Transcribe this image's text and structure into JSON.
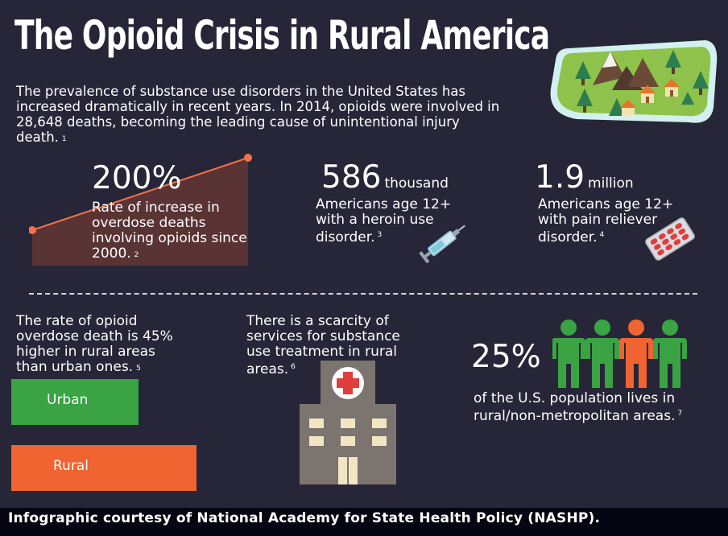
{
  "title": "The Opioid Crisis in Rural America",
  "intro": {
    "text": "The prevalence of substance use disorders in the United States has increased dramatically in recent years. In 2014, opioids were involved in 28,648 deaths, becoming the leading cause of unintentional injury death.",
    "ref": "1"
  },
  "stats": {
    "increase": {
      "value": "200%",
      "text": "Rate of increase in overdose deaths involving opioids since 2000.",
      "ref": "2"
    },
    "heroin": {
      "value": "586",
      "unit": "thousand",
      "text": "Americans age 12+ with a heroin use disorder.",
      "ref": "3"
    },
    "pain": {
      "value": "1.9",
      "unit": "million",
      "text": "Americans age 12+ with pain reliever disorder.",
      "ref": "4"
    }
  },
  "rural_rate": {
    "text": "The rate of opioid overdose death is 45% higher in rural areas than urban ones.",
    "ref": "5",
    "urban_label": "Urban",
    "rural_label": "Rural",
    "urban_color": "#3aa343",
    "rural_color": "#ef6431"
  },
  "scarcity": {
    "text": "There is a scarcity of services for substance use treatment in rural areas.",
    "ref": "6"
  },
  "population": {
    "value": "25%",
    "text": "of the U.S. population lives in rural/non-metropolitan areas.",
    "ref": "7",
    "people_colors": [
      "#3aa343",
      "#3aa343",
      "#ef6431",
      "#3aa343"
    ]
  },
  "icons": [
    "landscape-icon",
    "syringe-icon",
    "pill-blister-icon",
    "hospital-icon",
    "person-icon"
  ],
  "footer": "Infographic courtesy of National Academy for State Health Policy (NASHP)."
}
